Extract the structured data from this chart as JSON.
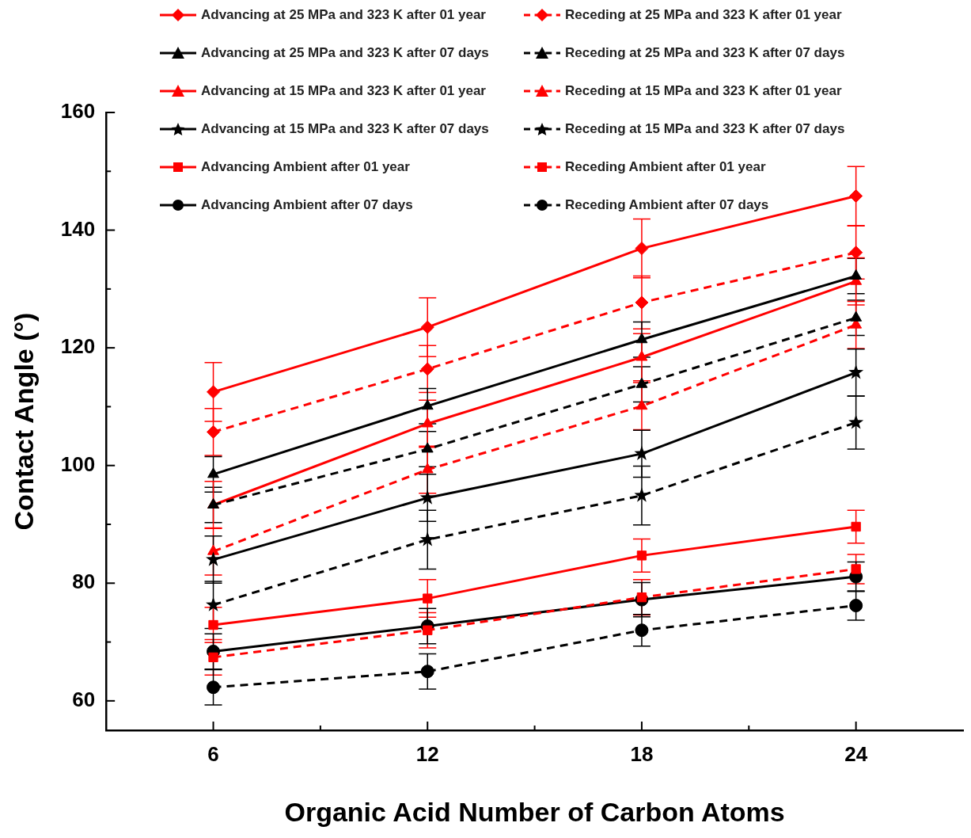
{
  "chart_data": {
    "type": "line",
    "xlabel": "Organic Acid Number of Carbon Atoms",
    "ylabel": "Contact Angle (°)",
    "x": [
      6,
      12,
      18,
      24
    ],
    "xlim": [
      3,
      27
    ],
    "xticks": [
      6,
      {
        "value": 9,
        "label": null
      },
      12,
      {
        "value": 15,
        "label": null
      },
      18,
      {
        "value": 21,
        "label": null
      },
      24
    ],
    "ylim": [
      55,
      160
    ],
    "yticks": [
      60,
      {
        "value": 70,
        "label": null
      },
      80,
      {
        "value": 90,
        "label": null
      },
      100,
      {
        "value": 110,
        "label": null
      },
      120,
      {
        "value": 130,
        "label": null
      },
      140,
      {
        "value": 150,
        "label": null
      },
      160
    ],
    "grid": false,
    "legend": "top",
    "series": [
      {
        "name": "Advancing at 25 MPa and 323 K after 01 year",
        "color": "#ff0000",
        "marker": "diamond",
        "line_style": "solid",
        "values": [
          112.5,
          123.5,
          136.9,
          145.8
        ],
        "errors": [
          5,
          5,
          5,
          5
        ]
      },
      {
        "name": "Receding at 25 MPa and 323 K after 01 year",
        "color": "#ff0000",
        "marker": "diamond",
        "line_style": "dashed",
        "values": [
          105.7,
          116.4,
          127.7,
          136.2
        ],
        "errors": [
          4,
          4,
          4.5,
          4.5
        ]
      },
      {
        "name": "Advancing at 25 MPa and 323 K after 07 days",
        "color": "#000000",
        "marker": "triangle",
        "line_style": "solid",
        "values": [
          98.5,
          110.1,
          121.4,
          132.2
        ],
        "errors": [
          3,
          3,
          3,
          3
        ]
      },
      {
        "name": "Receding at 25 MPa and 323 K after 07 days",
        "color": "#000000",
        "marker": "triangle",
        "line_style": "dashed",
        "values": [
          93.3,
          102.8,
          113.8,
          125.1
        ],
        "errors": [
          3,
          3,
          3,
          3
        ]
      },
      {
        "name": "Advancing at 15 MPa and 323 K after 01 year",
        "color": "#ff0000",
        "marker": "triangle",
        "line_style": "solid",
        "values": [
          93.3,
          107.1,
          118.4,
          131.3
        ],
        "errors": [
          4,
          4,
          4,
          4
        ]
      },
      {
        "name": "Receding at 15 MPa and 323 K after 01 year",
        "color": "#ff0000",
        "marker": "triangle",
        "line_style": "dashed",
        "values": [
          85.4,
          99.3,
          110.1,
          123.9
        ],
        "errors": [
          4,
          4,
          4,
          4
        ]
      },
      {
        "name": "Advancing at 15 MPa and 323 K after 07 days",
        "color": "#000000",
        "marker": "star",
        "line_style": "solid",
        "values": [
          84.0,
          94.5,
          102.0,
          115.8
        ],
        "errors": [
          4,
          4,
          4,
          4
        ]
      },
      {
        "name": "Receding at 15 MPa and 323 K after 07 days",
        "color": "#000000",
        "marker": "star",
        "line_style": "dashed",
        "values": [
          76.3,
          87.4,
          94.9,
          107.3
        ],
        "errors": [
          4,
          5,
          5,
          4.5
        ]
      },
      {
        "name": "Advancing Ambient after 01 year",
        "color": "#ff0000",
        "marker": "square",
        "line_style": "solid",
        "values": [
          72.9,
          77.4,
          84.7,
          89.6
        ],
        "errors": [
          3,
          3.2,
          2.8,
          2.8
        ]
      },
      {
        "name": "Receding Ambient after 01 year",
        "color": "#ff0000",
        "marker": "square",
        "line_style": "dashed",
        "values": [
          67.4,
          72.0,
          77.6,
          82.4
        ],
        "errors": [
          3,
          3,
          3,
          2.5
        ]
      },
      {
        "name": "Advancing Ambient after 07 days",
        "color": "#000000",
        "marker": "circle",
        "line_style": "solid",
        "values": [
          68.4,
          72.7,
          77.2,
          81.1
        ],
        "errors": [
          3,
          3,
          2.9,
          2.5
        ]
      },
      {
        "name": "Receding Ambient after 07 days",
        "color": "#000000",
        "marker": "circle",
        "line_style": "dashed",
        "values": [
          62.3,
          65.0,
          72.0,
          76.2
        ],
        "errors": [
          3,
          3,
          2.7,
          2.5
        ]
      }
    ]
  }
}
